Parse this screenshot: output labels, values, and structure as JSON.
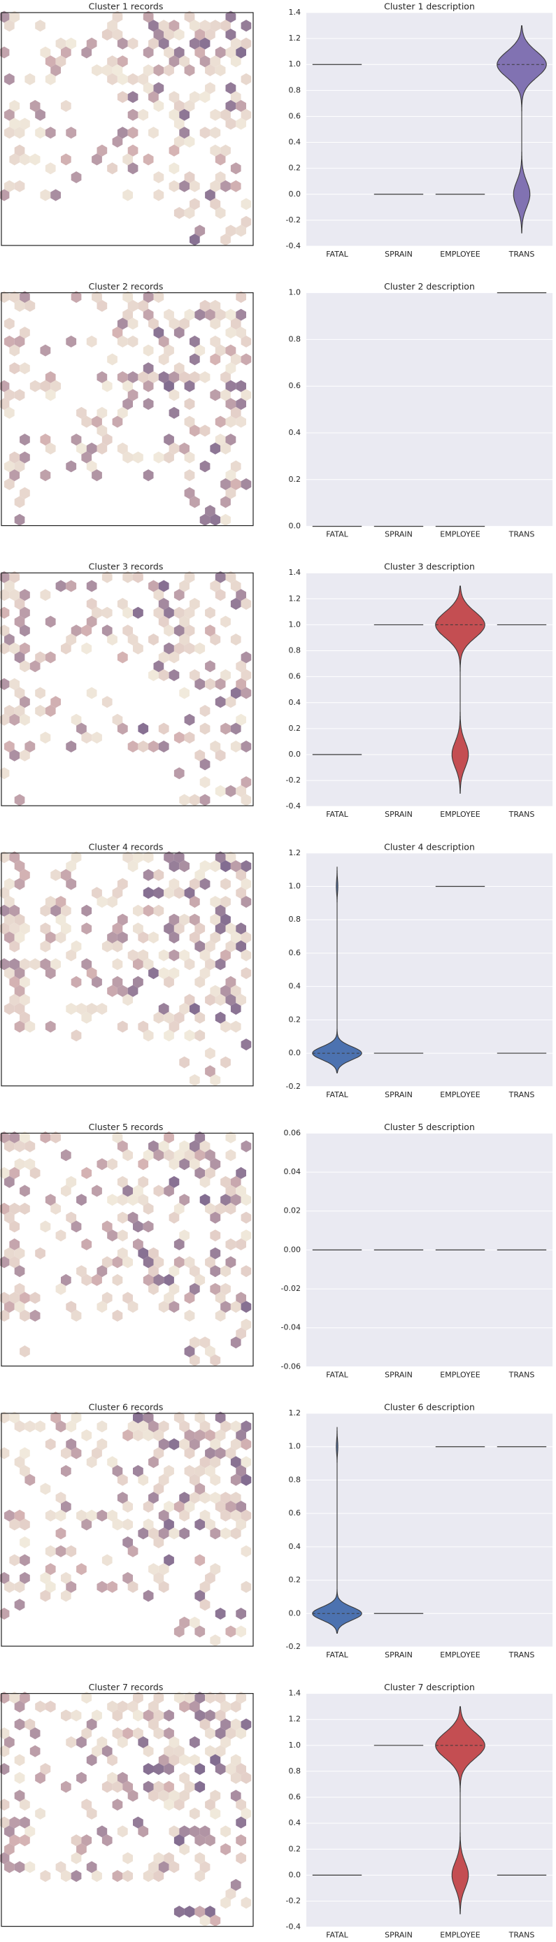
{
  "chart_data": [
    {
      "type": "hexbin",
      "title": "Cluster 1 records"
    },
    {
      "type": "violin",
      "title": "Cluster 1 description",
      "categories": [
        "FATAL",
        "SPRAIN",
        "EMPLOYEE",
        "TRANS"
      ],
      "values": [
        1,
        0,
        0,
        0.75
      ],
      "colors": [
        "#4c72b0",
        "#55a868",
        "#c44e52",
        "#8172b2"
      ],
      "ylim": [
        -0.4,
        1.4
      ],
      "yticks": [
        -0.4,
        -0.2,
        {
          "value": 0,
          "label": "0.0"
        },
        0.2,
        0.4,
        0.6,
        0.8,
        {
          "value": 1,
          "label": "1.0"
        },
        1.2,
        1.4
      ],
      "grid": true
    },
    {
      "type": "hexbin",
      "title": "Cluster 2 records"
    },
    {
      "type": "violin",
      "title": "Cluster 2 description",
      "categories": [
        "FATAL",
        "SPRAIN",
        "EMPLOYEE",
        "TRANS"
      ],
      "values": [
        0,
        0,
        0,
        1
      ],
      "colors": [
        "#4c72b0",
        "#55a868",
        "#c44e52",
        "#8172b2"
      ],
      "ylim": [
        0,
        1
      ],
      "yticks": [
        {
          "value": 0,
          "label": "0.0"
        },
        0.2,
        0.4,
        0.6,
        0.8,
        {
          "value": 1,
          "label": "1.0"
        }
      ],
      "grid": true
    },
    {
      "type": "hexbin",
      "title": "Cluster 3 records"
    },
    {
      "type": "violin",
      "title": "Cluster 3 description",
      "categories": [
        "FATAL",
        "SPRAIN",
        "EMPLOYEE",
        "TRANS"
      ],
      "values": [
        0,
        1,
        0.75,
        1
      ],
      "colors": [
        "#4c72b0",
        "#55a868",
        "#c44e52",
        "#8172b2"
      ],
      "ylim": [
        -0.4,
        1.4
      ],
      "yticks": [
        -0.4,
        -0.2,
        {
          "value": 0,
          "label": "0.0"
        },
        0.2,
        0.4,
        0.6,
        0.8,
        {
          "value": 1,
          "label": "1.0"
        },
        1.2,
        1.4
      ],
      "grid": true
    },
    {
      "type": "hexbin",
      "title": "Cluster 4 records"
    },
    {
      "type": "violin",
      "title": "Cluster 4 description",
      "categories": [
        "FATAL",
        "SPRAIN",
        "EMPLOYEE",
        "TRANS"
      ],
      "values": [
        0.03,
        0,
        1,
        0
      ],
      "colors": [
        "#4c72b0",
        "#55a868",
        "#c44e52",
        "#8172b2"
      ],
      "ylim": [
        -0.2,
        1.2
      ],
      "yticks": [
        -0.2,
        {
          "value": 0,
          "label": "0.0"
        },
        0.2,
        0.4,
        0.6,
        0.8,
        {
          "value": 1,
          "label": "1.0"
        },
        1.2
      ],
      "grid": true
    },
    {
      "type": "hexbin",
      "title": "Cluster 5 records"
    },
    {
      "type": "violin",
      "title": "Cluster 5 description",
      "categories": [
        "FATAL",
        "SPRAIN",
        "EMPLOYEE",
        "TRANS"
      ],
      "values": [
        0,
        0,
        0,
        0
      ],
      "colors": [
        "#4c72b0",
        "#55a868",
        "#c44e52",
        "#8172b2"
      ],
      "ylim": [
        -0.06,
        0.06
      ],
      "yticks": [
        -0.06,
        -0.04,
        -0.02,
        {
          "value": 0,
          "label": "0.00"
        },
        0.02,
        0.04,
        0.06
      ],
      "grid": true
    },
    {
      "type": "hexbin",
      "title": "Cluster 6 records"
    },
    {
      "type": "violin",
      "title": "Cluster 6 description",
      "categories": [
        "FATAL",
        "SPRAIN",
        "EMPLOYEE",
        "TRANS"
      ],
      "values": [
        0.03,
        0,
        1,
        1
      ],
      "colors": [
        "#4c72b0",
        "#55a868",
        "#c44e52",
        "#8172b2"
      ],
      "ylim": [
        -0.2,
        1.2
      ],
      "yticks": [
        -0.2,
        {
          "value": 0,
          "label": "0.0"
        },
        0.2,
        0.4,
        0.6,
        0.8,
        {
          "value": 1,
          "label": "1.0"
        },
        1.2
      ],
      "grid": true
    },
    {
      "type": "hexbin",
      "title": "Cluster 7 records"
    },
    {
      "type": "violin",
      "title": "Cluster 7 description",
      "categories": [
        "FATAL",
        "SPRAIN",
        "EMPLOYEE",
        "TRANS"
      ],
      "values": [
        0,
        1,
        0.75,
        0
      ],
      "colors": [
        "#4c72b0",
        "#55a868",
        "#c44e52",
        "#8172b2"
      ],
      "ylim": [
        -0.4,
        1.4
      ],
      "yticks": [
        -0.4,
        -0.2,
        {
          "value": 0,
          "label": "0.0"
        },
        0.2,
        0.4,
        0.6,
        0.8,
        {
          "value": 1,
          "label": "1.0"
        },
        1.2,
        1.4
      ],
      "grid": true
    }
  ]
}
